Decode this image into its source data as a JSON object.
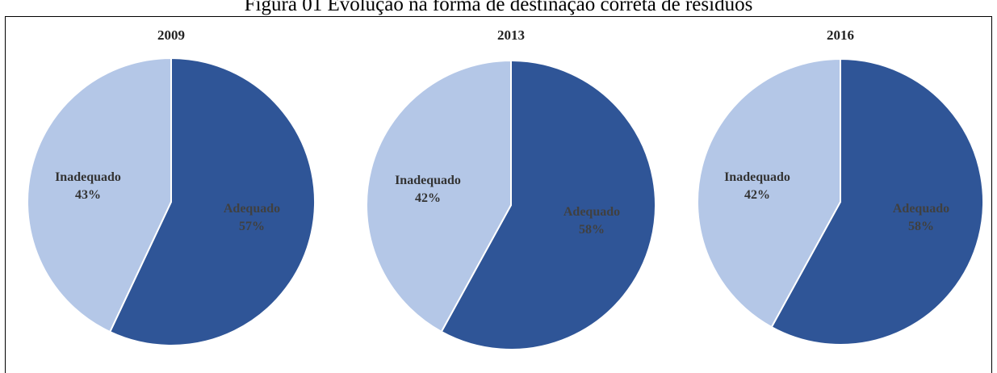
{
  "caption": "Figura 01 Evolução na forma de destinação correta de resíduos",
  "colors": {
    "adequado": "#2f5597",
    "inadequado": "#b4c7e7",
    "label_dark": "#404040"
  },
  "chart_data": [
    {
      "type": "pie",
      "title": "2009",
      "slices": [
        {
          "name": "Adequado",
          "value": 57,
          "label": "57%"
        },
        {
          "name": "Inadequado",
          "value": 43,
          "label": "43%"
        }
      ]
    },
    {
      "type": "pie",
      "title": "2013",
      "slices": [
        {
          "name": "Adequado",
          "value": 58,
          "label": "58%"
        },
        {
          "name": "Inadequado",
          "value": 42,
          "label": "42%"
        }
      ]
    },
    {
      "type": "pie",
      "title": "2016",
      "slices": [
        {
          "name": "Adequado",
          "value": 58,
          "label": "58%"
        },
        {
          "name": "Inadequado",
          "value": 42,
          "label": "42%"
        }
      ]
    }
  ]
}
